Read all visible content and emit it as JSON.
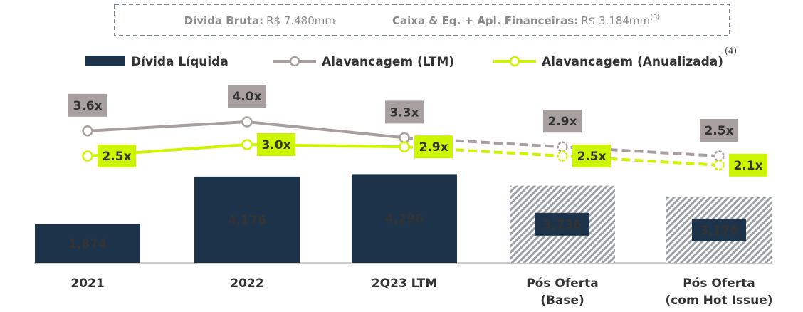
{
  "chart_data": {
    "type": "combo",
    "notes": [
      {
        "label": "Dívida Bruta:",
        "value": "R$ 7.480mm"
      },
      {
        "label": "Caixa & Eq. + Apl. Financeiras:",
        "value": "R$ 3.184mm",
        "footnote": "(5)"
      }
    ],
    "legend_footnote": "(4)",
    "categories": [
      [
        "2021"
      ],
      [
        "2022"
      ],
      [
        "2Q23 LTM"
      ],
      [
        "Pós Oferta",
        "(Base)"
      ],
      [
        "Pós Oferta",
        "(com Hot Issue)"
      ]
    ],
    "series": [
      {
        "name": "Dívida Líquida",
        "type": "bar",
        "color": "#1d3349",
        "values": [
          1874,
          4176,
          4296,
          3736,
          3176
        ],
        "value_labels": [
          "1,874",
          "4,176",
          "4,296",
          "3,736",
          "3,176"
        ],
        "hatched": [
          false,
          false,
          false,
          true,
          true
        ]
      },
      {
        "name": "Alavancagem (LTM)",
        "type": "line",
        "color": "#a8a09e",
        "values": [
          3.6,
          4.0,
          3.3,
          2.9,
          2.5
        ],
        "value_labels": [
          "3.6x",
          "4.0x",
          "3.3x",
          "2.9x",
          "2.5x"
        ],
        "dashed_from": 2
      },
      {
        "name": "Alavancagem (Anualizada)",
        "type": "line",
        "color": "#ccf500",
        "values": [
          2.5,
          3.0,
          2.9,
          2.5,
          2.1
        ],
        "value_labels": [
          "2.5x",
          "3.0x",
          "2.9x",
          "2.5x",
          "2.1x"
        ],
        "dashed_from": 2
      }
    ]
  }
}
